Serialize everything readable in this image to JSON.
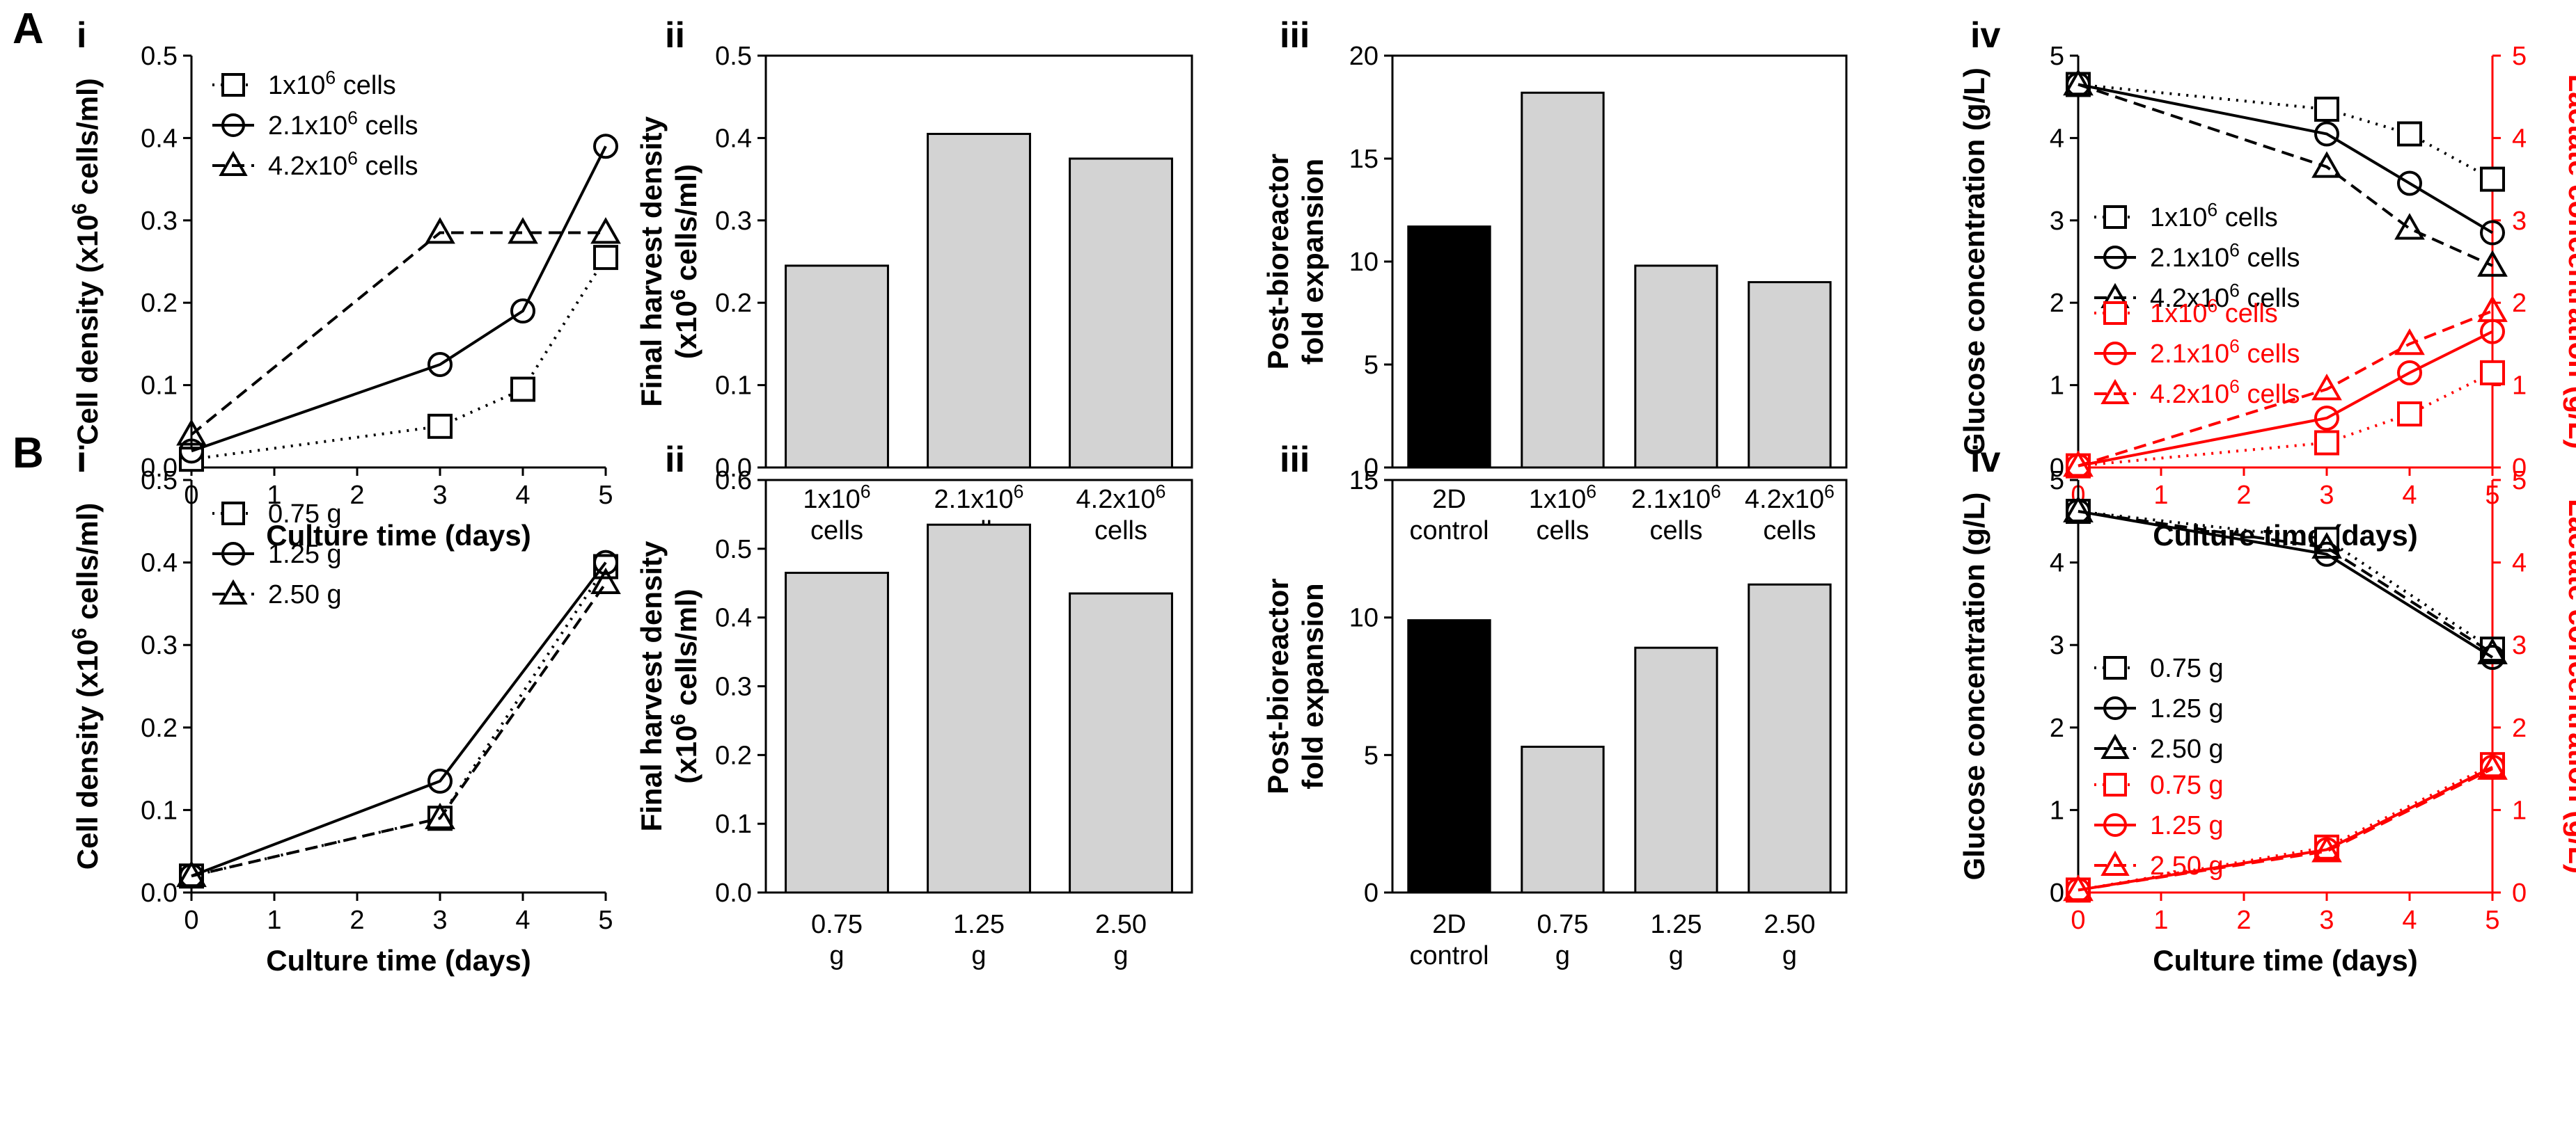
{
  "colors": {
    "black": "#000000",
    "red": "#ff0000",
    "bar": "#d3d3d3",
    "bar_control": "#000000"
  },
  "rows": [
    {
      "row_label": "A"
    },
    {
      "row_label": "B"
    }
  ],
  "chart_data": [
    {
      "id": "A-i",
      "row": "A",
      "panel_label": "i",
      "type": "line",
      "xlabel": "Culture time (days)",
      "ylabel_parts": {
        "before": "Cell density (x10",
        "sup": "6",
        "after": " cells/ml)"
      },
      "xlim": [
        0,
        5
      ],
      "ylim": [
        0,
        0.5
      ],
      "xticks": [
        "0",
        "1",
        "2",
        "3",
        "4",
        "5"
      ],
      "yticks": [
        "0.0",
        "0.1",
        "0.2",
        "0.3",
        "0.4",
        "0.5"
      ],
      "series": [
        {
          "name_parts": {
            "before": "1x10",
            "sup": "6",
            "after": " cells"
          },
          "marker": "square",
          "dash": "dotted",
          "x": [
            0,
            3,
            4,
            5
          ],
          "values": [
            0.01,
            0.05,
            0.095,
            0.255
          ]
        },
        {
          "name_parts": {
            "before": "2.1x10",
            "sup": "6",
            "after": " cells"
          },
          "marker": "circle",
          "dash": "solid",
          "x": [
            0,
            3,
            4,
            5
          ],
          "values": [
            0.02,
            0.125,
            0.19,
            0.39
          ]
        },
        {
          "name_parts": {
            "before": "4.2x10",
            "sup": "6",
            "after": " cells"
          },
          "marker": "triangle",
          "dash": "dashed",
          "x": [
            0,
            3,
            4,
            5
          ],
          "values": [
            0.04,
            0.285,
            0.285,
            0.285
          ]
        }
      ]
    },
    {
      "id": "A-ii",
      "row": "A",
      "panel_label": "ii",
      "type": "bar",
      "ylabel_line1": "Final harvest density",
      "ylabel_parts": {
        "before": "(x10",
        "sup": "6",
        "after": " cells/ml)"
      },
      "ylim": [
        0,
        0.5
      ],
      "yticks": [
        "0.0",
        "0.1",
        "0.2",
        "0.3",
        "0.4",
        "0.5"
      ],
      "categories": [
        {
          "parts": {
            "before": "1x10",
            "sup": "6",
            "after": ""
          },
          "line2": "cells"
        },
        {
          "parts": {
            "before": "2.1x10",
            "sup": "6",
            "after": ""
          },
          "line2": "cells"
        },
        {
          "parts": {
            "before": "4.2x10",
            "sup": "6",
            "after": ""
          },
          "line2": "cells"
        }
      ],
      "values": [
        0.245,
        0.405,
        0.375
      ],
      "control": [
        false,
        false,
        false
      ]
    },
    {
      "id": "A-iii",
      "row": "A",
      "panel_label": "iii",
      "type": "bar",
      "ylabel_line1": "Post-bioreactor",
      "ylabel_line2": "fold expansion",
      "ylim": [
        0,
        20
      ],
      "yticks": [
        "0",
        "5",
        "10",
        "15",
        "20"
      ],
      "categories": [
        {
          "parts": {
            "before": "2D",
            "sup": "",
            "after": ""
          },
          "line2": "control"
        },
        {
          "parts": {
            "before": "1x10",
            "sup": "6",
            "after": ""
          },
          "line2": "cells"
        },
        {
          "parts": {
            "before": "2.1x10",
            "sup": "6",
            "after": ""
          },
          "line2": "cells"
        },
        {
          "parts": {
            "before": "4.2x10",
            "sup": "6",
            "after": ""
          },
          "line2": "cells"
        }
      ],
      "values": [
        11.7,
        18.2,
        9.8,
        9.0
      ],
      "control": [
        true,
        false,
        false,
        false
      ]
    },
    {
      "id": "A-iv",
      "row": "A",
      "panel_label": "iv",
      "type": "line",
      "dual_axis": true,
      "xlabel": "Culture time (days)",
      "ylabel": "Glucose concentration (g/L)",
      "ylabel_right": "Lactate concentration (g/L)",
      "xlim": [
        0,
        5
      ],
      "ylim": [
        0,
        5
      ],
      "ylim_right": [
        0,
        5
      ],
      "xticks": [
        "0",
        "1",
        "2",
        "3",
        "4",
        "5"
      ],
      "yticks": [
        "0",
        "1",
        "2",
        "3",
        "4",
        "5"
      ],
      "yticks_right": [
        "0",
        "1",
        "2",
        "3",
        "4",
        "5"
      ],
      "series": [
        {
          "axis": "left",
          "name_parts": {
            "before": "1x10",
            "sup": "6",
            "after": " cells"
          },
          "marker": "square",
          "dash": "dotted",
          "x": [
            0,
            3,
            4,
            5
          ],
          "values": [
            4.65,
            4.35,
            4.05,
            3.5
          ]
        },
        {
          "axis": "left",
          "name_parts": {
            "before": "2.1x10",
            "sup": "6",
            "after": " cells"
          },
          "marker": "circle",
          "dash": "solid",
          "x": [
            0,
            3,
            4,
            5
          ],
          "values": [
            4.65,
            4.05,
            3.45,
            2.85
          ]
        },
        {
          "axis": "left",
          "name_parts": {
            "before": "4.2x10",
            "sup": "6",
            "after": " cells"
          },
          "marker": "triangle",
          "dash": "dashed",
          "x": [
            0,
            3,
            4,
            5
          ],
          "values": [
            4.65,
            3.65,
            2.9,
            2.45
          ]
        },
        {
          "axis": "right",
          "name_parts": {
            "before": "1x10",
            "sup": "6",
            "after": " cells"
          },
          "marker": "square",
          "dash": "dotted",
          "x": [
            0,
            3,
            4,
            5
          ],
          "values": [
            0.02,
            0.3,
            0.65,
            1.15
          ]
        },
        {
          "axis": "right",
          "name_parts": {
            "before": "2.1x10",
            "sup": "6",
            "after": " cells"
          },
          "marker": "circle",
          "dash": "solid",
          "x": [
            0,
            3,
            4,
            5
          ],
          "values": [
            0.02,
            0.6,
            1.15,
            1.65
          ]
        },
        {
          "axis": "right",
          "name_parts": {
            "before": "4.2x10",
            "sup": "6",
            "after": " cells"
          },
          "marker": "triangle",
          "dash": "dashed",
          "x": [
            0,
            3,
            4,
            5
          ],
          "values": [
            0.02,
            0.95,
            1.5,
            1.9
          ]
        }
      ]
    },
    {
      "id": "B-i",
      "row": "B",
      "panel_label": "i",
      "type": "line",
      "xlabel": "Culture time (days)",
      "ylabel_parts": {
        "before": "Cell density (x10",
        "sup": "6",
        "after": " cells/ml)"
      },
      "xlim": [
        0,
        5
      ],
      "ylim": [
        0,
        0.5
      ],
      "xticks": [
        "0",
        "1",
        "2",
        "3",
        "4",
        "5"
      ],
      "yticks": [
        "0.0",
        "0.1",
        "0.2",
        "0.3",
        "0.4",
        "0.5"
      ],
      "series": [
        {
          "name_parts": {
            "before": "0.75 g",
            "sup": "",
            "after": ""
          },
          "marker": "square",
          "dash": "dotted",
          "x": [
            0,
            3,
            5
          ],
          "values": [
            0.02,
            0.09,
            0.395
          ]
        },
        {
          "name_parts": {
            "before": "1.25 g",
            "sup": "",
            "after": ""
          },
          "marker": "circle",
          "dash": "solid",
          "x": [
            0,
            3,
            5
          ],
          "values": [
            0.02,
            0.135,
            0.4
          ]
        },
        {
          "name_parts": {
            "before": "2.50 g",
            "sup": "",
            "after": ""
          },
          "marker": "triangle",
          "dash": "dashed",
          "x": [
            0,
            3,
            5
          ],
          "values": [
            0.02,
            0.09,
            0.375
          ]
        }
      ]
    },
    {
      "id": "B-ii",
      "row": "B",
      "panel_label": "ii",
      "type": "bar",
      "ylabel_line1": "Final harvest density",
      "ylabel_parts": {
        "before": "(x10",
        "sup": "6",
        "after": " cells/ml)"
      },
      "ylim": [
        0,
        0.6
      ],
      "yticks": [
        "0.0",
        "0.1",
        "0.2",
        "0.3",
        "0.4",
        "0.5",
        "0.6"
      ],
      "categories": [
        {
          "parts": {
            "before": "0.75",
            "sup": "",
            "after": ""
          },
          "line2": "g"
        },
        {
          "parts": {
            "before": "1.25",
            "sup": "",
            "after": ""
          },
          "line2": "g"
        },
        {
          "parts": {
            "before": "2.50",
            "sup": "",
            "after": ""
          },
          "line2": "g"
        }
      ],
      "values": [
        0.465,
        0.535,
        0.435
      ],
      "control": [
        false,
        false,
        false
      ]
    },
    {
      "id": "B-iii",
      "row": "B",
      "panel_label": "iii",
      "type": "bar",
      "ylabel_line1": "Post-bioreactor",
      "ylabel_line2": "fold expansion",
      "ylim": [
        0,
        15
      ],
      "yticks": [
        "0",
        "5",
        "10",
        "15"
      ],
      "categories": [
        {
          "parts": {
            "before": "2D",
            "sup": "",
            "after": ""
          },
          "line2": "control"
        },
        {
          "parts": {
            "before": "0.75",
            "sup": "",
            "after": ""
          },
          "line2": "g"
        },
        {
          "parts": {
            "before": "1.25",
            "sup": "",
            "after": ""
          },
          "line2": "g"
        },
        {
          "parts": {
            "before": "2.50",
            "sup": "",
            "after": ""
          },
          "line2": "g"
        }
      ],
      "values": [
        9.9,
        5.3,
        8.9,
        11.2
      ],
      "control": [
        true,
        false,
        false,
        false
      ]
    },
    {
      "id": "B-iv",
      "row": "B",
      "panel_label": "iv",
      "type": "line",
      "dual_axis": true,
      "xlabel": "Culture time (days)",
      "ylabel": "Glucose concentration (g/L)",
      "ylabel_right": "Lactate concentration (g/L)",
      "xlim": [
        0,
        5
      ],
      "ylim": [
        0,
        5
      ],
      "ylim_right": [
        0,
        5
      ],
      "xticks": [
        "0",
        "1",
        "2",
        "3",
        "4",
        "5"
      ],
      "yticks": [
        "0",
        "1",
        "2",
        "3",
        "4",
        "5"
      ],
      "yticks_right": [
        "0",
        "1",
        "2",
        "3",
        "4",
        "5"
      ],
      "series": [
        {
          "axis": "left",
          "name_parts": {
            "before": "0.75 g",
            "sup": "",
            "after": ""
          },
          "marker": "square",
          "dash": "dotted",
          "x": [
            0,
            3,
            5
          ],
          "values": [
            4.62,
            4.28,
            2.95
          ]
        },
        {
          "axis": "left",
          "name_parts": {
            "before": "1.25 g",
            "sup": "",
            "after": ""
          },
          "marker": "circle",
          "dash": "solid",
          "x": [
            0,
            3,
            5
          ],
          "values": [
            4.62,
            4.1,
            2.85
          ]
        },
        {
          "axis": "left",
          "name_parts": {
            "before": "2.50 g",
            "sup": "",
            "after": ""
          },
          "marker": "triangle",
          "dash": "dashed",
          "x": [
            0,
            3,
            5
          ],
          "values": [
            4.62,
            4.18,
            2.9
          ]
        },
        {
          "axis": "right",
          "name_parts": {
            "before": "0.75 g",
            "sup": "",
            "after": ""
          },
          "marker": "square",
          "dash": "dotted",
          "x": [
            0,
            3,
            5
          ],
          "values": [
            0.03,
            0.55,
            1.55
          ]
        },
        {
          "axis": "right",
          "name_parts": {
            "before": "1.25 g",
            "sup": "",
            "after": ""
          },
          "marker": "circle",
          "dash": "solid",
          "x": [
            0,
            3,
            5
          ],
          "values": [
            0.03,
            0.52,
            1.52
          ]
        },
        {
          "axis": "right",
          "name_parts": {
            "before": "2.50 g",
            "sup": "",
            "after": ""
          },
          "marker": "triangle",
          "dash": "dashed",
          "x": [
            0,
            3,
            5
          ],
          "values": [
            0.03,
            0.5,
            1.5
          ]
        }
      ]
    }
  ]
}
